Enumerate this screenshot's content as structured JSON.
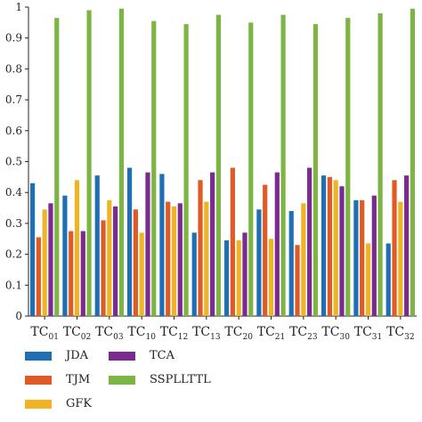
{
  "chart_data": {
    "type": "bar",
    "categories": [
      {
        "base": "TC",
        "sub": "01"
      },
      {
        "base": "TC",
        "sub": "02"
      },
      {
        "base": "TC",
        "sub": "03"
      },
      {
        "base": "TC",
        "sub": "10"
      },
      {
        "base": "TC",
        "sub": "12"
      },
      {
        "base": "TC",
        "sub": "13"
      },
      {
        "base": "TC",
        "sub": "20"
      },
      {
        "base": "TC",
        "sub": "21"
      },
      {
        "base": "TC",
        "sub": "23"
      },
      {
        "base": "TC",
        "sub": "30"
      },
      {
        "base": "TC",
        "sub": "31"
      },
      {
        "base": "TC",
        "sub": "32"
      }
    ],
    "series": [
      {
        "name": "JDA",
        "color": "#1f6fb4",
        "values": [
          0.43,
          0.39,
          0.455,
          0.48,
          0.46,
          0.27,
          0.245,
          0.345,
          0.34,
          0.455,
          0.375,
          0.235
        ]
      },
      {
        "name": "TJM",
        "color": "#e05a25",
        "values": [
          0.255,
          0.275,
          0.31,
          0.345,
          0.37,
          0.44,
          0.48,
          0.425,
          0.23,
          0.45,
          0.375,
          0.44
        ]
      },
      {
        "name": "GFK",
        "color": "#f0b323",
        "values": [
          0.345,
          0.44,
          0.375,
          0.27,
          0.355,
          0.37,
          0.245,
          0.25,
          0.365,
          0.44,
          0.235,
          0.37
        ]
      },
      {
        "name": "TCA",
        "color": "#7b2a90",
        "values": [
          0.365,
          0.275,
          0.355,
          0.465,
          0.365,
          0.465,
          0.27,
          0.465,
          0.48,
          0.42,
          0.39,
          0.455
        ]
      },
      {
        "name": "SSPLLTTL",
        "color": "#7db544",
        "values": [
          0.965,
          0.99,
          0.995,
          0.955,
          0.945,
          0.975,
          0.95,
          0.975,
          0.945,
          0.965,
          0.98,
          0.995
        ]
      }
    ],
    "ylim": [
      0,
      1
    ],
    "yticks": [
      "0",
      "0.1",
      "0.2",
      "0.3",
      "0.4",
      "0.5",
      "0.6",
      "0.7",
      "0.8",
      "0.9",
      "1"
    ],
    "title": "",
    "xlabel": "",
    "ylabel": "",
    "legend_position": "bottom",
    "grid": false
  }
}
